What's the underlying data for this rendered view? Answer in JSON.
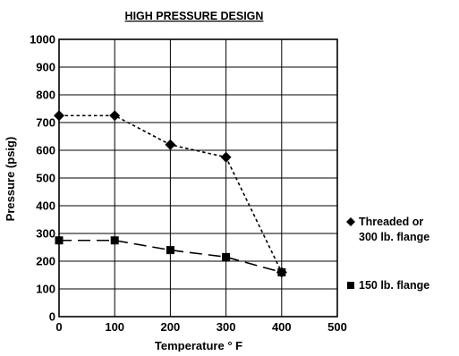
{
  "chart_data": {
    "type": "line",
    "title": "HIGH PRESSURE DESIGN",
    "xlabel": "Temperature ° F",
    "ylabel": "Pressure (psig)",
    "xlim": [
      0,
      500
    ],
    "ylim": [
      0,
      1000
    ],
    "xticks": [
      "0",
      "100",
      "200",
      "300",
      "400",
      "500"
    ],
    "yticks": [
      "0",
      "100",
      "200",
      "300",
      "400",
      "500",
      "600",
      "700",
      "800",
      "900",
      "1000"
    ],
    "grid": true,
    "legend_position": "right",
    "series": [
      {
        "name": "Threaded or 300 lb. flange",
        "legend_lines": [
          "Threaded or",
          "300 lb. flange"
        ],
        "marker": "diamond",
        "line_style": "short-dash",
        "color": "#000000",
        "x": [
          0,
          100,
          200,
          300,
          400
        ],
        "y": [
          725,
          725,
          620,
          575,
          160
        ]
      },
      {
        "name": "150 lb. flange",
        "legend_lines": [
          "150 lb. flange"
        ],
        "marker": "square",
        "line_style": "long-dash",
        "color": "#000000",
        "x": [
          0,
          100,
          200,
          300,
          400
        ],
        "y": [
          275,
          275,
          240,
          215,
          160
        ]
      }
    ]
  }
}
